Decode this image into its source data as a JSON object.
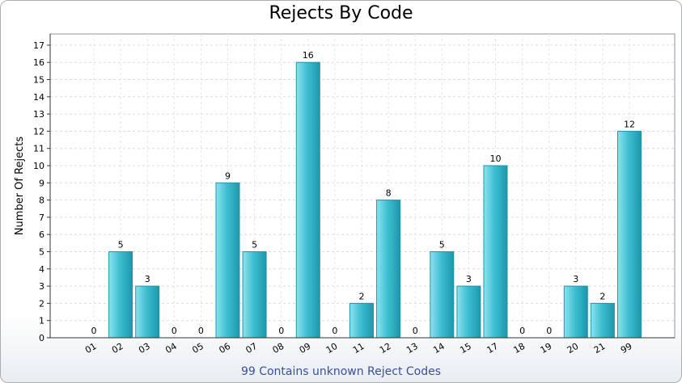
{
  "chart_data": {
    "type": "bar",
    "title": "Rejects By Code",
    "xlabel": "",
    "ylabel": "Number Of Rejects",
    "footnote": "99 Contains unknown Reject Codes",
    "categories": [
      "01",
      "02",
      "03",
      "04",
      "05",
      "06",
      "07",
      "08",
      "09",
      "10",
      "11",
      "12",
      "13",
      "14",
      "15",
      "17",
      "18",
      "19",
      "20",
      "21",
      "99"
    ],
    "values": [
      0,
      5,
      3,
      0,
      0,
      9,
      5,
      0,
      16,
      0,
      2,
      8,
      0,
      5,
      3,
      10,
      0,
      0,
      3,
      2,
      12
    ],
    "ylim": [
      0,
      17
    ],
    "yticks": [
      "0",
      "1",
      "2",
      "3",
      "4",
      "5",
      "6",
      "7",
      "8",
      "9",
      "10",
      "11",
      "12",
      "13",
      "14",
      "15",
      "16",
      "17"
    ],
    "grid": true,
    "bar_color": "#3fbfd2",
    "bar_color_light": "#8fe2ee",
    "bar_color_dark": "#1c97ad"
  }
}
